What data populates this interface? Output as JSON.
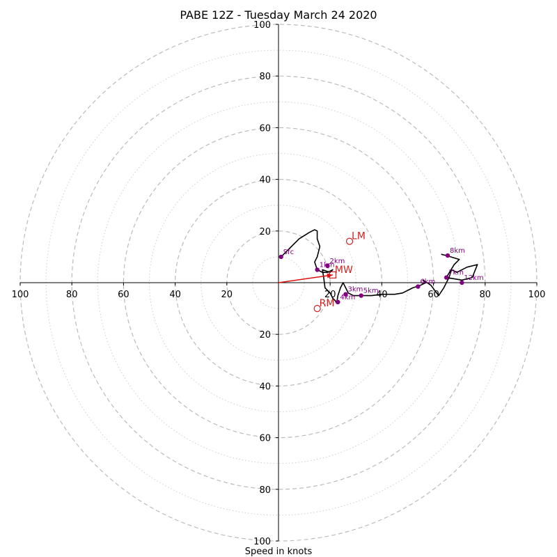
{
  "chart_data": {
    "type": "hodograph",
    "title": "PABE 12Z - Tuesday March 24 2020",
    "xlabel": "Speed in knots",
    "range": [
      -100,
      100
    ],
    "ring_major": [
      20,
      40,
      60,
      80,
      100
    ],
    "ring_minor": [
      10,
      30,
      50,
      70,
      90
    ],
    "tick_labels_x": [
      {
        "value": -100,
        "label": "100"
      },
      {
        "value": -80,
        "label": "80"
      },
      {
        "value": -60,
        "label": "60"
      },
      {
        "value": -40,
        "label": "40"
      },
      {
        "value": -20,
        "label": "20"
      },
      {
        "value": 20,
        "label": "20"
      },
      {
        "value": 40,
        "label": "40"
      },
      {
        "value": 60,
        "label": "60"
      },
      {
        "value": 80,
        "label": "80"
      },
      {
        "value": 100,
        "label": "100"
      }
    ],
    "tick_labels_y": [
      {
        "value": 100,
        "label": "100"
      },
      {
        "value": 80,
        "label": "80"
      },
      {
        "value": 60,
        "label": "60"
      },
      {
        "value": 40,
        "label": "40"
      },
      {
        "value": 20,
        "label": "20"
      },
      {
        "value": -20,
        "label": "20"
      },
      {
        "value": -40,
        "label": "40"
      },
      {
        "value": -60,
        "label": "60"
      },
      {
        "value": -80,
        "label": "80"
      },
      {
        "value": -100,
        "label": "100"
      }
    ],
    "hodograph_line": {
      "color": "#000000",
      "points": [
        [
          1,
          10
        ],
        [
          4,
          13
        ],
        [
          8,
          17
        ],
        [
          12,
          19.5
        ],
        [
          14,
          20.5
        ],
        [
          15,
          20
        ],
        [
          15,
          17
        ],
        [
          16,
          14
        ],
        [
          15,
          10
        ],
        [
          14,
          8
        ],
        [
          15,
          5
        ],
        [
          17,
          4
        ],
        [
          19,
          4
        ],
        [
          21,
          5
        ],
        [
          20,
          4
        ],
        [
          17,
          5
        ],
        [
          17.5,
          2
        ],
        [
          18,
          -2
        ],
        [
          20,
          -4
        ],
        [
          21,
          -6
        ],
        [
          22,
          -7
        ],
        [
          22.5,
          -8
        ],
        [
          23,
          -5
        ],
        [
          24,
          -2
        ],
        [
          25,
          0
        ],
        [
          26,
          -2
        ],
        [
          27,
          -4
        ],
        [
          29,
          -5
        ],
        [
          32,
          -5
        ],
        [
          36,
          -5
        ],
        [
          40,
          -4.5
        ],
        [
          45,
          -4.5
        ],
        [
          48,
          -4
        ],
        [
          50,
          -3
        ],
        [
          52,
          -2
        ],
        [
          55,
          -1
        ],
        [
          57,
          0
        ],
        [
          56,
          1
        ],
        [
          59,
          -1
        ],
        [
          62,
          -5
        ],
        [
          64,
          -2
        ],
        [
          66,
          2
        ],
        [
          67,
          5
        ],
        [
          69,
          4
        ],
        [
          73,
          6
        ],
        [
          77,
          7
        ],
        [
          75,
          2
        ],
        [
          71,
          1
        ],
        [
          65,
          2
        ],
        [
          68,
          7
        ],
        [
          70,
          9
        ],
        [
          65,
          10.5
        ],
        [
          63,
          11
        ]
      ]
    },
    "height_markers": [
      {
        "label": "Sfc",
        "u": 1,
        "v": 10
      },
      {
        "label": "1km",
        "u": 15,
        "v": 5
      },
      {
        "label": "2km",
        "u": 19,
        "v": 6.5
      },
      {
        "label": "3km",
        "u": 26,
        "v": -4.5
      },
      {
        "label": "4km",
        "u": 23,
        "v": -7.5
      },
      {
        "label": "5km",
        "u": 32,
        "v": -5
      },
      {
        "label": "6km",
        "u": 54,
        "v": -1.5
      },
      {
        "label": "7km",
        "u": 65,
        "v": 2
      },
      {
        "label": "8km",
        "u": 65.5,
        "v": 10.5
      },
      {
        "label": "12km",
        "u": 71,
        "v": 0
      }
    ],
    "storm_motion": [
      {
        "label": "LM",
        "u": 27.5,
        "v": 16,
        "marker": "circle"
      },
      {
        "label": "RM",
        "u": 15,
        "v": -10,
        "marker": "circle"
      },
      {
        "label": "MW",
        "u": 21,
        "v": 3,
        "marker": "square"
      }
    ],
    "shear_vector": {
      "from": [
        0,
        0
      ],
      "to": [
        21,
        3
      ],
      "color": "#dd1111"
    },
    "colors": {
      "ring": "#bbbbbb",
      "marker": "#800080",
      "storm": "#cc2222",
      "axis": "#000000"
    }
  }
}
